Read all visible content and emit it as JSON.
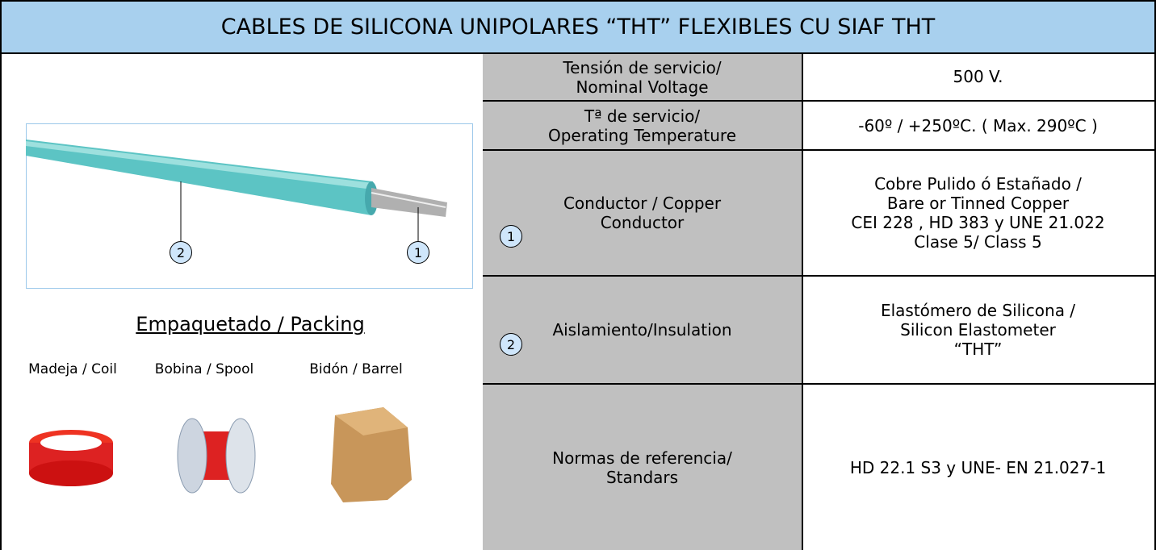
{
  "header": {
    "title": "CABLES DE SILICONA UNIPOLARES “THT” FLEXIBLES  CU SIAF THT"
  },
  "image": {
    "callouts": [
      "2",
      "1"
    ]
  },
  "packing": {
    "title": "Empaquetado / Packing",
    "items": [
      "Madeja / Coil",
      "Bobina / Spool",
      "Bidón / Barrel"
    ]
  },
  "table": {
    "rows": [
      {
        "label": [
          "Tensión de servicio/",
          "Nominal Voltage"
        ],
        "value": [
          "500 V."
        ]
      },
      {
        "label": [
          "Tª de servicio/",
          "Operating Temperature"
        ],
        "value": [
          "-60º / +250ºC. ( Max. 290ºC )"
        ]
      },
      {
        "label": [
          "Conductor / Copper",
          "Conductor"
        ],
        "marker": "1",
        "value": [
          "Cobre Pulido ó Estañado /",
          "Bare or Tinned Copper",
          "CEI 228 , HD 383 y UNE 21.022",
          "Clase 5/ Class 5"
        ]
      },
      {
        "label": [
          "Aislamiento/Insulation"
        ],
        "marker": "2",
        "value": [
          "Elastómero de Silicona /",
          "Silicon Elastometer",
          "“THT”"
        ]
      },
      {
        "label": [
          "Normas de referencia/",
          "Standars"
        ],
        "value": [
          "HD 22.1 S3 y UNE- EN 21.027-1"
        ]
      }
    ]
  }
}
